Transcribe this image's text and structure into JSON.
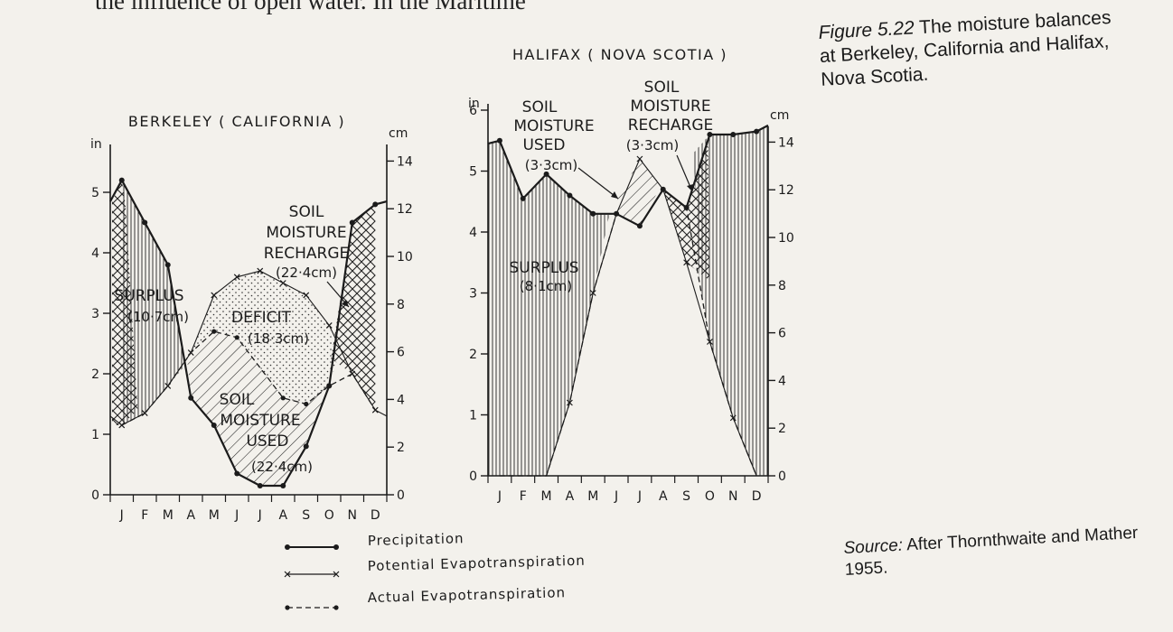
{
  "page": {
    "top_text": "the influence of open water. In the Maritime",
    "caption_fig": "Figure 5.22",
    "caption_text": "The moisture balances at Berkeley, California and Halifax, Nova Scotia.",
    "source_label": "Source:",
    "source_text": "After Thornthwaite and Mather 1955."
  },
  "chart_data": [
    {
      "type": "line",
      "title": "BERKELEY ( CALIFORNIA )",
      "left_unit": "in",
      "right_unit": "cm",
      "categories": [
        "J",
        "F",
        "M",
        "A",
        "M",
        "J",
        "J",
        "A",
        "S",
        "O",
        "N",
        "D"
      ],
      "left_ticks": [
        "0",
        "1",
        "2",
        "3",
        "4",
        "5"
      ],
      "right_ticks": [
        "0",
        "2",
        "4",
        "6",
        "8",
        "10",
        "12",
        "14"
      ],
      "ylim_in": [
        0,
        5.5
      ],
      "series": [
        {
          "name": "Precipitation",
          "values": [
            5.2,
            4.5,
            3.8,
            1.6,
            1.15,
            0.35,
            0.15,
            0.15,
            0.8,
            1.8,
            4.5,
            4.8
          ]
        },
        {
          "name": "Potential Evapotranspiration",
          "values": [
            1.15,
            1.35,
            1.8,
            2.35,
            3.3,
            3.6,
            3.7,
            3.5,
            3.3,
            2.8,
            2.0,
            1.4
          ]
        },
        {
          "name": "Actual Evapotranspiration",
          "values": [
            1.15,
            1.35,
            1.8,
            2.35,
            2.7,
            2.6,
            2.1,
            1.6,
            1.5,
            1.8,
            2.0,
            1.4
          ]
        }
      ],
      "annotations": {
        "surplus": [
          "SURPLUS",
          "(10·7cm)"
        ],
        "deficit": [
          "DEFICIT",
          "(18·3cm)"
        ],
        "used": [
          "SOIL",
          "MOISTURE",
          "USED",
          "(22·4cm)"
        ],
        "recharge": [
          "SOIL",
          "MOISTURE",
          "RECHARGE",
          "(22·4cm)"
        ]
      }
    },
    {
      "type": "line",
      "title": "HALIFAX ( NOVA SCOTIA )",
      "left_unit": "in",
      "right_unit": "cm",
      "categories": [
        "J",
        "F",
        "M",
        "A",
        "M",
        "J",
        "J",
        "A",
        "S",
        "O",
        "N",
        "D"
      ],
      "left_ticks": [
        "0",
        "1",
        "2",
        "3",
        "4",
        "5",
        "6"
      ],
      "right_ticks": [
        "0",
        "2",
        "4",
        "6",
        "8",
        "10",
        "12",
        "14"
      ],
      "ylim_in": [
        0,
        6
      ],
      "series": [
        {
          "name": "Precipitation",
          "values": [
            5.5,
            4.55,
            4.95,
            4.6,
            4.3,
            4.3,
            4.1,
            4.7,
            4.4,
            5.6,
            5.6,
            5.65
          ]
        },
        {
          "name": "Potential Evapotranspiration",
          "values": [
            0.0,
            0.0,
            0.0,
            1.2,
            3.0,
            4.3,
            5.2,
            4.7,
            3.5,
            2.2,
            0.95,
            0.0
          ]
        },
        {
          "name": "Actual Evapotranspiration",
          "values": [
            0.0,
            0.0,
            0.0,
            1.2,
            3.0,
            4.3,
            4.1,
            4.7,
            4.4,
            2.2,
            0.95,
            0.0
          ]
        }
      ],
      "annotations": {
        "used": [
          "SOIL",
          "MOISTURE",
          "USED",
          "(3·3cm)"
        ],
        "recharge": [
          "SOIL",
          "MOISTURE",
          "RECHARGE",
          "(3·3cm)"
        ],
        "surplus": [
          "SURPLUS",
          "(8·1cm)"
        ]
      }
    }
  ],
  "legend": [
    {
      "style": "solid-dot",
      "label": "Precipitation"
    },
    {
      "style": "solid-x",
      "label": "Potential  Evapotranspiration"
    },
    {
      "style": "dash-dot",
      "label": "Actual  Evapotranspiration"
    }
  ]
}
